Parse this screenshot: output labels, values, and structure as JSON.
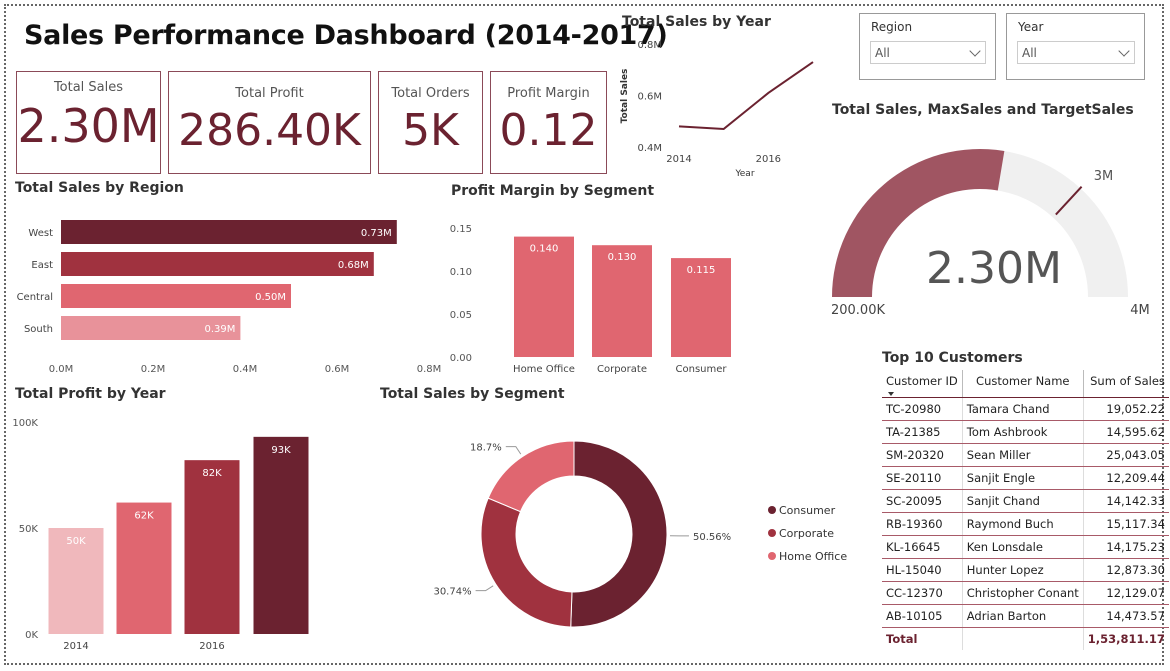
{
  "dashboard": {
    "title": "Sales Performance Dashboard (2014-2017)"
  },
  "cards": [
    {
      "label": "Total Sales",
      "value": "2.30M"
    },
    {
      "label": "Total Profit",
      "value": "286.40K"
    },
    {
      "label": "Total Orders",
      "value": "5K"
    },
    {
      "label": "Profit Margin",
      "value": "0.12"
    }
  ],
  "slicers": [
    {
      "label": "Region",
      "value": "All"
    },
    {
      "label": "Year",
      "value": "All"
    }
  ],
  "colors": {
    "dark": "#6b2230",
    "mid": "#a0323f",
    "red": "#c9414f",
    "pink": "#e06670",
    "light": "#f0b8bc",
    "gauge": "#a05562",
    "gauge_bg": "#f0f0f0"
  },
  "chart_data": [
    {
      "id": "sales_by_year",
      "type": "line",
      "title": "Total Sales by Year",
      "xlabel": "Year",
      "ylabel": "Total Sales",
      "x": [
        2014,
        2015,
        2016,
        2017
      ],
      "values": [
        0.48,
        0.47,
        0.61,
        0.73
      ],
      "x_ticks": [
        "2014",
        "2016"
      ],
      "y_ticks": [
        "0.4M",
        "0.6M",
        "0.8M"
      ],
      "ylim": [
        0.4,
        0.8
      ]
    },
    {
      "id": "sales_by_region",
      "type": "bar",
      "orientation": "horizontal",
      "title": "Total Sales by Region",
      "categories": [
        "West",
        "East",
        "Central",
        "South"
      ],
      "values": [
        0.73,
        0.68,
        0.5,
        0.39
      ],
      "labels": [
        "0.73M",
        "0.68M",
        "0.50M",
        "0.39M"
      ],
      "x_ticks": [
        "0.0M",
        "0.2M",
        "0.4M",
        "0.6M",
        "0.8M"
      ],
      "xlim": [
        0,
        0.8
      ]
    },
    {
      "id": "profit_margin_by_segment",
      "type": "bar",
      "title": "Profit Margin by Segment",
      "categories": [
        "Home Office",
        "Corporate",
        "Consumer"
      ],
      "values": [
        0.14,
        0.13,
        0.115
      ],
      "labels": [
        "0.140",
        "0.130",
        "0.115"
      ],
      "y_ticks": [
        "0.00",
        "0.05",
        "0.10",
        "0.15"
      ],
      "ylim": [
        0,
        0.15
      ]
    },
    {
      "id": "profit_by_year",
      "type": "bar",
      "title": "Total Profit by Year",
      "categories": [
        "2014",
        "2015",
        "2016",
        "2017"
      ],
      "x_ticks": [
        "2014",
        "",
        "2016",
        ""
      ],
      "values": [
        50,
        62,
        82,
        93
      ],
      "labels": [
        "50K",
        "62K",
        "82K",
        "93K"
      ],
      "y_ticks": [
        "0K",
        "50K",
        "100K"
      ],
      "ylim": [
        0,
        100
      ]
    },
    {
      "id": "sales_by_segment",
      "type": "pie",
      "title": "Total Sales by Segment",
      "categories": [
        "Consumer",
        "Corporate",
        "Home Office"
      ],
      "values": [
        50.56,
        30.74,
        18.7
      ],
      "labels": [
        "50.56%",
        "30.74%",
        "18.7%"
      ],
      "legend": "right"
    },
    {
      "id": "sales_gauge",
      "type": "gauge",
      "title": "Total Sales, MaxSales and TargetSales",
      "value": 2.3,
      "min": 0.2,
      "max": 4,
      "target": 3,
      "value_label": "2.30M",
      "min_label": "200.00K",
      "max_label": "4M",
      "target_label": "3M"
    }
  ],
  "top_customers": {
    "title": "Top 10 Customers",
    "headers": [
      "Customer ID",
      "Customer Name",
      "Sum of Sales"
    ],
    "rows": [
      [
        "TC-20980",
        "Tamara Chand",
        "19,052.22"
      ],
      [
        "TA-21385",
        "Tom Ashbrook",
        "14,595.62"
      ],
      [
        "SM-20320",
        "Sean Miller",
        "25,043.05"
      ],
      [
        "SE-20110",
        "Sanjit Engle",
        "12,209.44"
      ],
      [
        "SC-20095",
        "Sanjit Chand",
        "14,142.33"
      ],
      [
        "RB-19360",
        "Raymond Buch",
        "15,117.34"
      ],
      [
        "KL-16645",
        "Ken Lonsdale",
        "14,175.23"
      ],
      [
        "HL-15040",
        "Hunter Lopez",
        "12,873.30"
      ],
      [
        "CC-12370",
        "Christopher Conant",
        "12,129.07"
      ],
      [
        "AB-10105",
        "Adrian Barton",
        "14,473.57"
      ]
    ],
    "total_label": "Total",
    "total_value": "1,53,811.17"
  }
}
